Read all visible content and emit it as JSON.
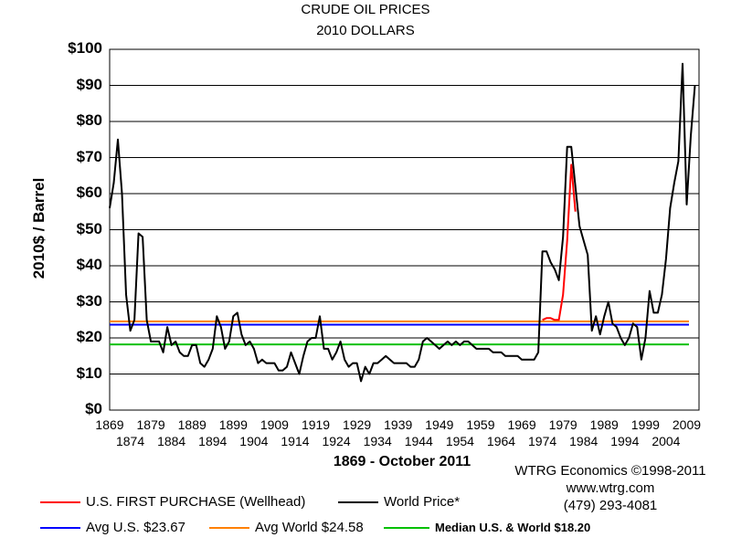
{
  "chart_data": {
    "type": "line",
    "title": "CRUDE OIL PRICES",
    "subtitle": "2010 DOLLARS",
    "xlabel": "1869 - October 2011",
    "ylabel": "2010$ / Barrel",
    "ylim": [
      0,
      100
    ],
    "xlim": [
      1869,
      2012
    ],
    "y_ticks": [
      "$0",
      "$10",
      "$20",
      "$30",
      "$40",
      "$50",
      "$60",
      "$70",
      "$80",
      "$90",
      "$100"
    ],
    "x_ticks_top": [
      "1869",
      "1879",
      "1889",
      "1899",
      "1909",
      "1919",
      "1929",
      "1939",
      "1949",
      "1959",
      "1969",
      "1979",
      "1989",
      "1999",
      "2009"
    ],
    "x_ticks_bottom": [
      "1874",
      "1884",
      "1894",
      "1904",
      "1914",
      "1924",
      "1934",
      "1944",
      "1954",
      "1964",
      "1974",
      "1984",
      "1994",
      "2004"
    ],
    "grid": "horizontal",
    "series": [
      {
        "name": "World Price*",
        "color": "#000000",
        "x": [
          1869,
          1870,
          1871,
          1872,
          1873,
          1874,
          1875,
          1876,
          1877,
          1878,
          1879,
          1880,
          1881,
          1882,
          1883,
          1884,
          1885,
          1886,
          1887,
          1888,
          1889,
          1890,
          1891,
          1892,
          1893,
          1894,
          1895,
          1896,
          1897,
          1898,
          1899,
          1900,
          1901,
          1902,
          1903,
          1904,
          1905,
          1906,
          1907,
          1908,
          1909,
          1910,
          1911,
          1912,
          1913,
          1914,
          1915,
          1916,
          1917,
          1918,
          1919,
          1920,
          1921,
          1922,
          1923,
          1924,
          1925,
          1926,
          1927,
          1928,
          1929,
          1930,
          1931,
          1932,
          1933,
          1934,
          1935,
          1936,
          1937,
          1938,
          1939,
          1940,
          1941,
          1942,
          1943,
          1944,
          1945,
          1946,
          1947,
          1948,
          1949,
          1950,
          1951,
          1952,
          1953,
          1954,
          1955,
          1956,
          1957,
          1958,
          1959,
          1960,
          1961,
          1962,
          1963,
          1964,
          1965,
          1966,
          1967,
          1968,
          1969,
          1970,
          1971,
          1972,
          1973,
          1974,
          1975,
          1976,
          1977,
          1978,
          1979,
          1980,
          1981,
          1982,
          1983,
          1984,
          1985,
          1986,
          1987,
          1988,
          1989,
          1990,
          1991,
          1992,
          1993,
          1994,
          1995,
          1996,
          1997,
          1998,
          1999,
          2000,
          2001,
          2002,
          2003,
          2004,
          2005,
          2006,
          2007,
          2008,
          2009,
          2010,
          2011
        ],
        "values": [
          56,
          63,
          75,
          60,
          32,
          22,
          25,
          49,
          48,
          25,
          19,
          19,
          19,
          16,
          23,
          18,
          19,
          16,
          15,
          15,
          18,
          18,
          13,
          12,
          14,
          17,
          26,
          23,
          17,
          19,
          26,
          27,
          21,
          18,
          19,
          17,
          13,
          14,
          13,
          13,
          13,
          11,
          11,
          12,
          16,
          13,
          10,
          15,
          19,
          20,
          20,
          26,
          17,
          17,
          14,
          16,
          19,
          14,
          12,
          13,
          13,
          8,
          12,
          10,
          13,
          13,
          14,
          15,
          14,
          13,
          13,
          13,
          13,
          12,
          12,
          14,
          19,
          20,
          19,
          18,
          17,
          18,
          19,
          18,
          19,
          18,
          19,
          19,
          18,
          17,
          17,
          17,
          17,
          16,
          16,
          16,
          15,
          15,
          15,
          15,
          14,
          14,
          14,
          14,
          16,
          44,
          44,
          41,
          39,
          36,
          48,
          73,
          73,
          62,
          51,
          47,
          43,
          22,
          26,
          21,
          26,
          30,
          24,
          23,
          20,
          18,
          20,
          24,
          23,
          14,
          20,
          33,
          27,
          27,
          32,
          42,
          56,
          63,
          69,
          96,
          57,
          76,
          90
        ]
      },
      {
        "name": "U.S. FIRST PURCHASE (Wellhead)",
        "color": "#ff0000",
        "x": [
          1974,
          1975,
          1976,
          1977,
          1978,
          1979,
          1980,
          1981,
          1982
        ],
        "values": [
          25,
          25.5,
          25.5,
          25,
          25,
          32,
          47,
          68,
          55
        ]
      }
    ],
    "reference_lines": [
      {
        "name": "Avg U.S. $23.67",
        "value": 23.67,
        "color": "#0000ff"
      },
      {
        "name": "Avg World $24.58",
        "value": 24.58,
        "color": "#ff8000"
      },
      {
        "name": "Median U.S. & World  $18.20",
        "value": 18.2,
        "color": "#00c000"
      }
    ]
  },
  "credit": {
    "line1": "WTRG Economics  ©1998-2011",
    "line2": "www.wtrg.com",
    "line3": "(479) 293-4081"
  },
  "legend": {
    "us_first_purchase": "U.S. FIRST PURCHASE (Wellhead)",
    "world_price": "World Price*",
    "avg_us": "Avg U.S. $23.67",
    "avg_world": "Avg World $24.58",
    "median": "Median U.S. & World  $18.20"
  },
  "colors": {
    "red": "#ff0000",
    "black": "#000000",
    "blue": "#0000ff",
    "orange": "#ff8000",
    "green": "#00c000"
  }
}
